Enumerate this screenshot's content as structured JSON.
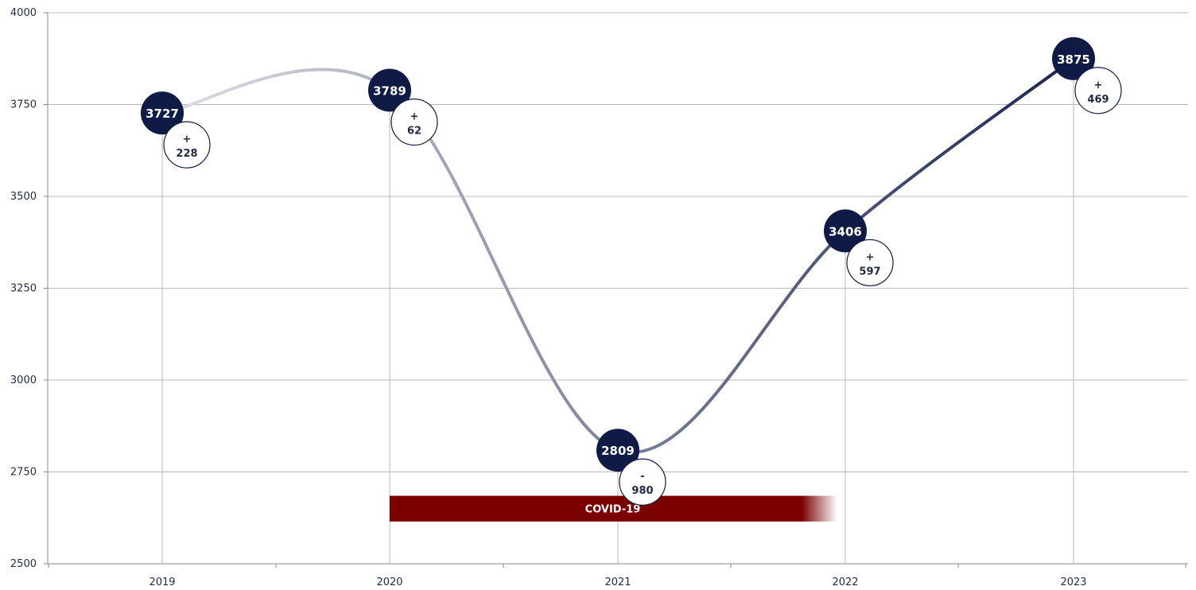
{
  "chart_data": {
    "type": "line",
    "title": "",
    "xlabel": "",
    "ylabel": "",
    "categories": [
      "2019",
      "2020",
      "2021",
      "2022",
      "2023"
    ],
    "series": [
      {
        "values": [
          3727,
          3789,
          2809,
          3406,
          3875
        ]
      }
    ],
    "value_labels": [
      "3727",
      "3789",
      "2809",
      "3406",
      "3875"
    ],
    "changes": [
      {
        "sign": "+",
        "amount": "228"
      },
      {
        "sign": "+",
        "amount": "62"
      },
      {
        "sign": "-",
        "amount": "980"
      },
      {
        "sign": "+",
        "amount": "597"
      },
      {
        "sign": "+",
        "amount": "469"
      }
    ],
    "ylim": [
      2500,
      4000
    ],
    "yticks": [
      "2500",
      "2750",
      "3000",
      "3250",
      "3500",
      "3750",
      "4000"
    ],
    "grid": true,
    "band": {
      "label": "COVID-19",
      "from": "2020",
      "to": "2022",
      "y_range": [
        2615,
        2685
      ],
      "color": "#7b0000"
    },
    "colors": {
      "marker": "#0f1a45",
      "line_light": "#e0e0e4",
      "line_dark": "#1c2550",
      "grid": "#b8b8b8"
    }
  }
}
